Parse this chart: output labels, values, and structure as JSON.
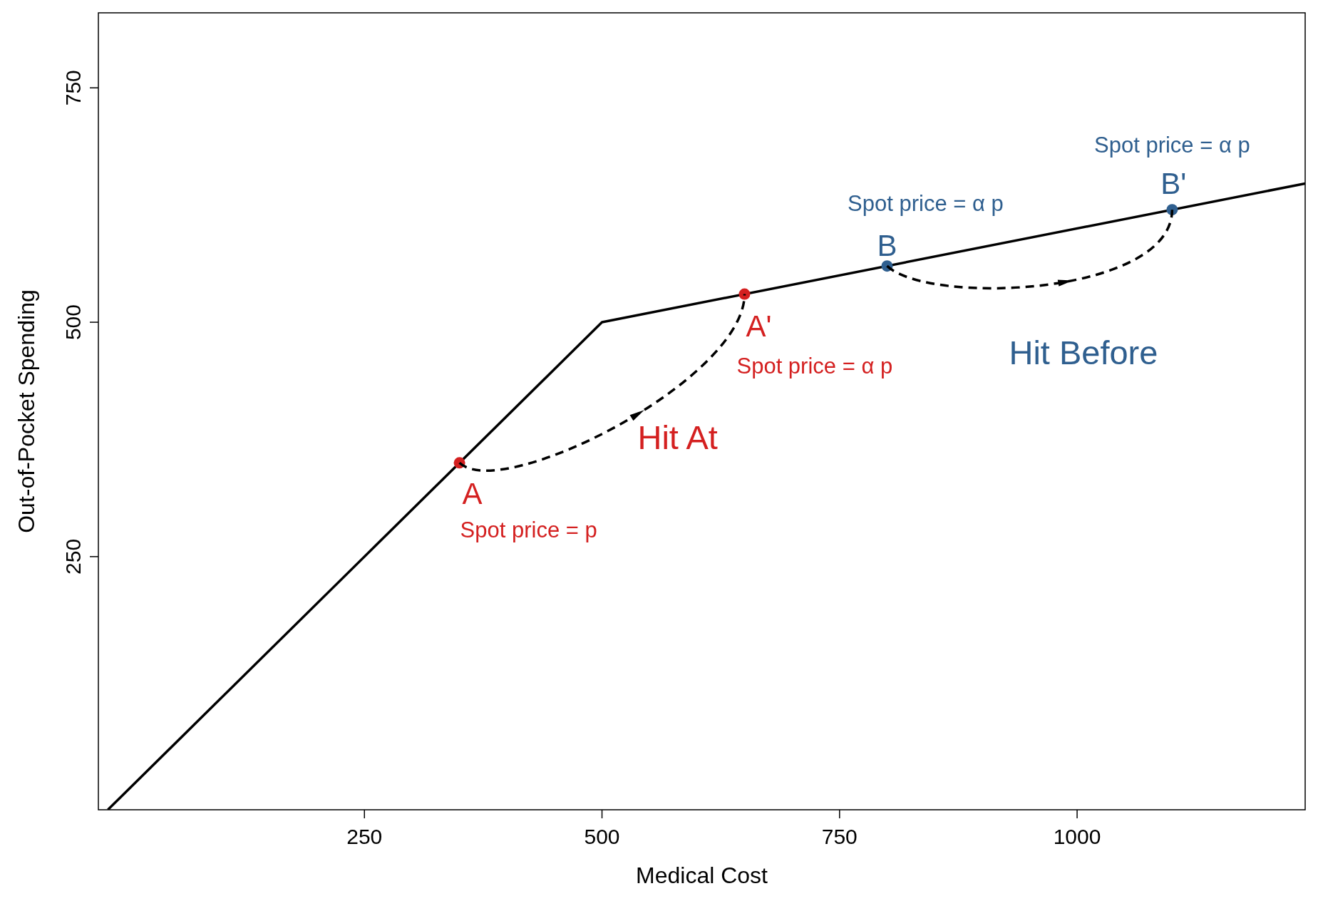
{
  "chart_data": {
    "type": "line",
    "xlabel": "Medical Cost",
    "ylabel": "Out-of-Pocket Spending",
    "xlim": [
      -30,
      1240
    ],
    "ylim": [
      -20,
      830
    ],
    "xticks": [
      250,
      500,
      750,
      1000
    ],
    "yticks": [
      250,
      500,
      750
    ],
    "grid": false,
    "series": [
      {
        "color": "#000000",
        "x": [
          -20,
          500,
          1240
        ],
        "values": [
          -20,
          500,
          648
        ],
        "marker": "none",
        "line_style": "solid"
      },
      {
        "type": "scatter",
        "color": "#d42020",
        "x": [
          350,
          650
        ],
        "values": [
          350,
          530
        ],
        "marker": "circle"
      },
      {
        "type": "scatter",
        "color": "#2f5f8f",
        "x": [
          800,
          1100
        ],
        "values": [
          560,
          620
        ],
        "marker": "circle"
      }
    ],
    "annotations": [
      {
        "text": "A",
        "x": 350,
        "y": 350
      },
      "Spot price = p",
      {
        "text": "A'",
        "x": 650,
        "y": 530
      },
      "Spot price = α p",
      "Hit At",
      {
        "text": "B",
        "x": 800,
        "y": 560
      },
      "Spot price = α p",
      "Hit Before",
      {
        "text": "B'",
        "x": 1100,
        "y": 620
      },
      "Spot price = α p"
    ]
  }
}
